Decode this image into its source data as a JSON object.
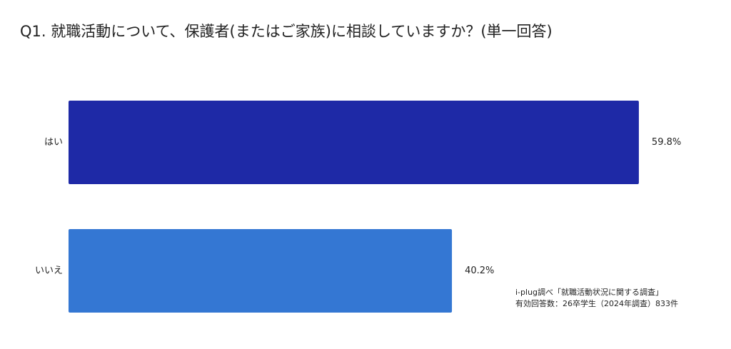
{
  "chart_data": {
    "type": "bar",
    "orientation": "horizontal",
    "title": "Q1. 就職活動について、保護者(またはご家族)に相談していますか？(単一回答)",
    "categories": [
      "はい",
      "いいえ"
    ],
    "values": [
      59.8,
      40.2
    ],
    "value_labels": [
      "59.8%",
      "40.2%"
    ],
    "colors": [
      "#1e29a6",
      "#3477d3"
    ],
    "annotations": [
      "i-plug調べ「就職活動状況に関する調査」",
      "有効回答数：26卒学生（2024年調査）833件"
    ]
  }
}
